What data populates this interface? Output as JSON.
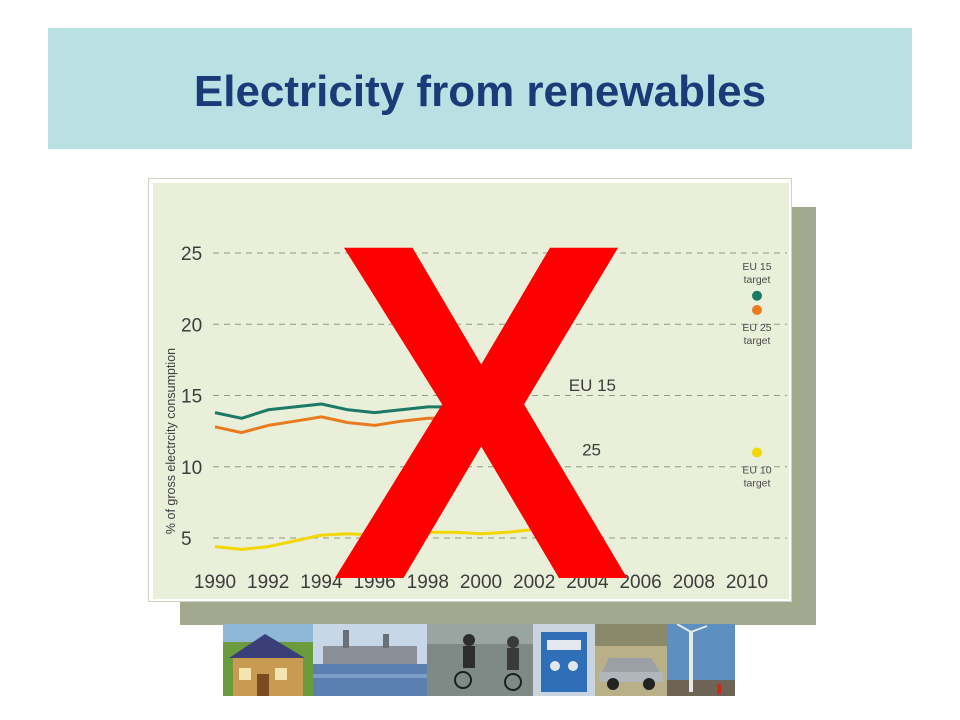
{
  "slide": {
    "title": "Electricity from renewables"
  },
  "overlay": {
    "mark": "X",
    "color": "#ff0000"
  },
  "colors": {
    "title_band": "#b9e1e4",
    "title_text": "#1a3a78",
    "chart_bg": "#e9efd9",
    "shadow": "#a3a98e"
  },
  "photos": [
    {
      "name": "solar-house-photo"
    },
    {
      "name": "power-plant-photo"
    },
    {
      "name": "cyclists-photo"
    },
    {
      "name": "fuel-cell-photo"
    },
    {
      "name": "car-photo"
    },
    {
      "name": "wind-turbine-photo"
    }
  ],
  "chart_data": {
    "type": "line",
    "ylabel": "% of gross electrcity consumption",
    "xlabel": "",
    "x_ticks": [
      1990,
      1992,
      1994,
      1996,
      1998,
      2000,
      2002,
      2004,
      2006,
      2008,
      2010
    ],
    "y_ticks": [
      5,
      10,
      15,
      20,
      25
    ],
    "xlim": [
      1990,
      2010
    ],
    "ylim": [
      3,
      27
    ],
    "grid": "horizontal dashed",
    "series": [
      {
        "name": "EU 15",
        "color": "#1a7a66",
        "x": [
          1990,
          1991,
          1992,
          1993,
          1994,
          1995,
          1996,
          1997,
          1998,
          1999
        ],
        "values": [
          13.8,
          13.4,
          14.0,
          14.2,
          14.4,
          14.0,
          13.8,
          14.0,
          14.2,
          14.2
        ]
      },
      {
        "name": "EU 25",
        "color": "#e87b1e",
        "x": [
          1990,
          1991,
          1992,
          1993,
          1994,
          1995,
          1996,
          1997,
          1998,
          1999
        ],
        "values": [
          12.8,
          12.4,
          12.9,
          13.2,
          13.5,
          13.1,
          12.9,
          13.2,
          13.4,
          13.4
        ]
      },
      {
        "name": "EU 10",
        "color": "#f2d800",
        "x": [
          1990,
          1991,
          1992,
          1993,
          1994,
          1995,
          1996,
          1997,
          1998,
          1999,
          2000,
          2001,
          2002
        ],
        "values": [
          4.4,
          4.2,
          4.4,
          4.8,
          5.2,
          5.3,
          5.2,
          5.3,
          5.4,
          5.4,
          5.3,
          5.4,
          5.6
        ]
      }
    ],
    "series_labels": [
      {
        "text": "EU 15",
        "x": 2003.3,
        "y": 15.3
      },
      {
        "text": "25",
        "x": 2003.8,
        "y": 10.8
      }
    ],
    "targets": [
      {
        "label_top": "EU 15",
        "label_bottom": "target",
        "year": 2010,
        "value": 22.0,
        "color": "#1a7a66",
        "label_position": "above"
      },
      {
        "label_top": "EU 25",
        "label_bottom": "target",
        "year": 2010,
        "value": 21.0,
        "color": "#e87b1e",
        "label_position": "below"
      },
      {
        "label_top": "EU 10",
        "label_bottom": "target",
        "year": 2010,
        "value": 11.0,
        "color": "#f2d800",
        "label_position": "below"
      }
    ]
  }
}
